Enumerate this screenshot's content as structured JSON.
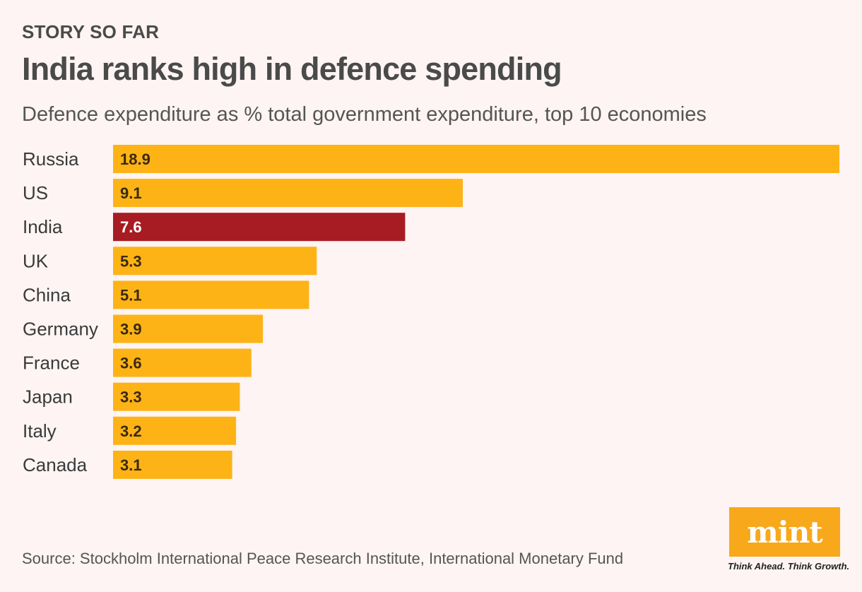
{
  "header": {
    "kicker": "STORY SO FAR",
    "title": "India ranks high in defence spending",
    "subtitle": "Defence expenditure as % total government expenditure, top 10 economies"
  },
  "footer": {
    "source": "Source: Stockholm International Peace Research Institute, International Monetary Fund",
    "logo_text": "mint",
    "tagline": "Think Ahead. Think Growth."
  },
  "colors": {
    "default_bar": "#fdb316",
    "highlight_bar": "#a61c22",
    "default_value_text": "#3a2a10",
    "highlight_value_text": "#ffffff",
    "logo_bg": "#f7a81b"
  },
  "chart_data": {
    "type": "bar",
    "orientation": "horizontal",
    "title": "India ranks high in defence spending",
    "subtitle": "Defence expenditure as % total government expenditure, top 10 economies",
    "categories": [
      "Russia",
      "US",
      "India",
      "UK",
      "China",
      "Germany",
      "France",
      "Japan",
      "Italy",
      "Canada"
    ],
    "values": [
      18.9,
      9.1,
      7.6,
      5.3,
      5.1,
      3.9,
      3.6,
      3.3,
      3.2,
      3.1
    ],
    "highlight": "India",
    "xlim": [
      0,
      18.9
    ],
    "grid": false,
    "legend": "none"
  }
}
